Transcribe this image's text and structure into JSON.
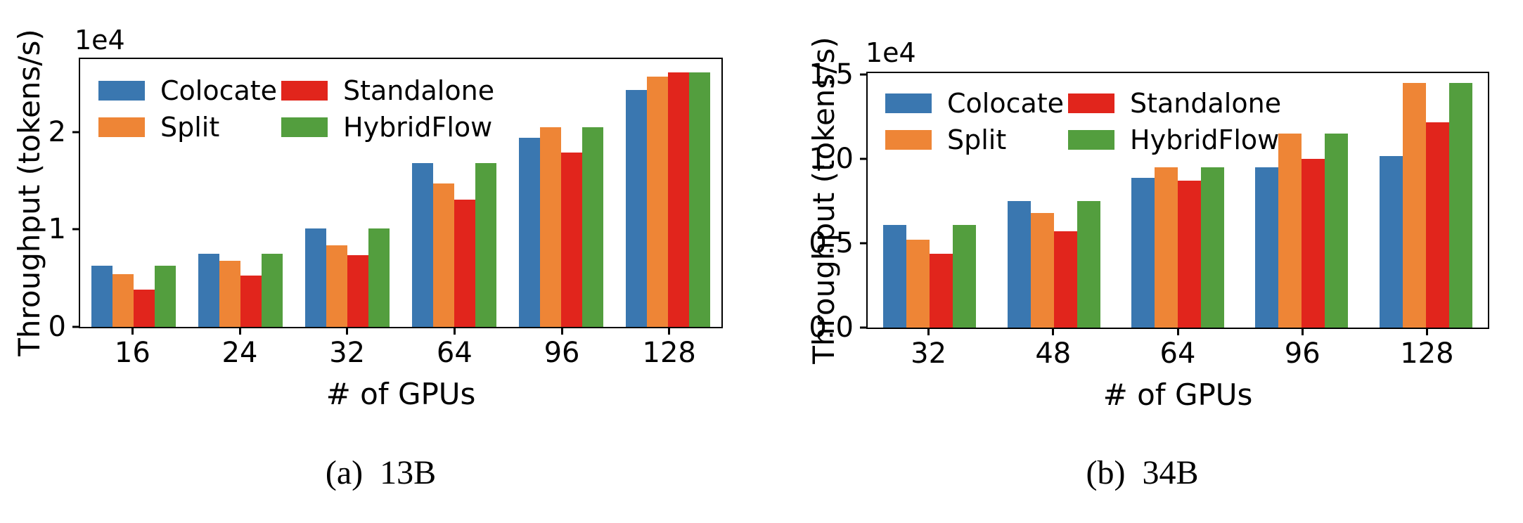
{
  "figure": {
    "background": "#ffffff",
    "text_color": "#000000",
    "axis_color": "#000000"
  },
  "chart_data": [
    {
      "type": "bar",
      "caption": "(a)  13B",
      "offset_text": "1e4",
      "ylabel": "Throughput (tokens/s)",
      "xlabel": "# of GPUs",
      "categories": [
        "16",
        "24",
        "32",
        "64",
        "96",
        "128"
      ],
      "series": [
        {
          "name": "Colocate",
          "color": "#3A77B0",
          "values": [
            6300,
            7500,
            10100,
            16800,
            19400,
            24300
          ]
        },
        {
          "name": "Split",
          "color": "#EE8536",
          "values": [
            5400,
            6800,
            8400,
            14700,
            20500,
            25700
          ]
        },
        {
          "name": "Standalone",
          "color": "#E1251C",
          "values": [
            3800,
            5300,
            7400,
            13100,
            17900,
            26100
          ]
        },
        {
          "name": "HybridFlow",
          "color": "#539E3E",
          "values": [
            6300,
            7500,
            10100,
            16800,
            20500,
            26100
          ]
        }
      ],
      "ylim": [
        0,
        27500
      ],
      "yticks": [
        0,
        10000,
        20000
      ],
      "ytick_labels": [
        "0",
        "1",
        "2"
      ],
      "grid": false,
      "legend_position": "upper left"
    },
    {
      "type": "bar",
      "caption": "(b)  34B",
      "offset_text": "1e4",
      "ylabel": "Throughput (tokens/s)",
      "xlabel": "# of GPUs",
      "categories": [
        "32",
        "48",
        "64",
        "96",
        "128"
      ],
      "series": [
        {
          "name": "Colocate",
          "color": "#3A77B0",
          "values": [
            6100,
            7500,
            8900,
            9500,
            10200
          ]
        },
        {
          "name": "Split",
          "color": "#EE8536",
          "values": [
            5200,
            6800,
            9500,
            11500,
            14500
          ]
        },
        {
          "name": "Standalone",
          "color": "#E1251C",
          "values": [
            4400,
            5700,
            8700,
            10000,
            12200
          ]
        },
        {
          "name": "HybridFlow",
          "color": "#539E3E",
          "values": [
            6100,
            7500,
            9500,
            11500,
            14500
          ]
        }
      ],
      "ylim": [
        0,
        15100
      ],
      "yticks": [
        0,
        5000,
        10000,
        15000
      ],
      "ytick_labels": [
        "0.0",
        "0.5",
        "1.0",
        "1.5"
      ],
      "grid": false,
      "legend_position": "upper left"
    }
  ]
}
